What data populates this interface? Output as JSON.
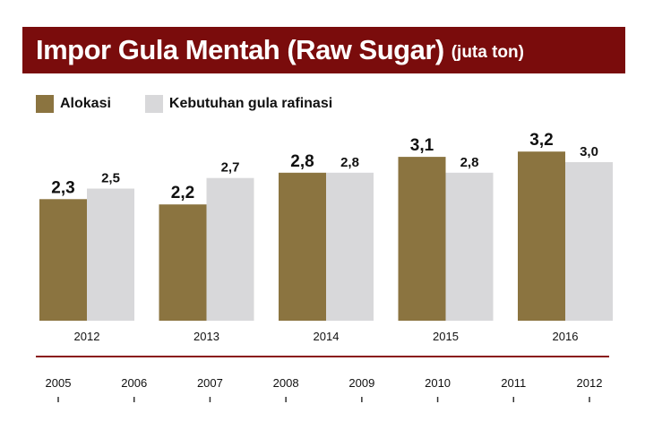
{
  "header": {
    "title": "Impor Gula Mentah (Raw Sugar)",
    "unit": "(juta ton)"
  },
  "colors": {
    "banner": "#7a0c0c",
    "alokasi": "#8b7440",
    "kebutuhan": "#d8d8da",
    "timeline": "#8a1a1a"
  },
  "legend": {
    "items": [
      {
        "label": "Alokasi"
      },
      {
        "label": "Kebutuhan gula rafinasi"
      }
    ]
  },
  "chart_data": {
    "type": "bar",
    "title": "Impor Gula Mentah (Raw Sugar)",
    "subtitle": "(juta ton)",
    "categories": [
      "2012",
      "2013",
      "2014",
      "2015",
      "2016"
    ],
    "series": [
      {
        "name": "Alokasi",
        "values": [
          2.3,
          2.2,
          2.8,
          3.1,
          3.2
        ],
        "labels": [
          "2,3",
          "2,2",
          "2,8",
          "3,1",
          "3,2"
        ]
      },
      {
        "name": "Kebutuhan gula rafinasi",
        "values": [
          2.5,
          2.7,
          2.8,
          2.8,
          3.0
        ],
        "labels": [
          "2,5",
          "2,7",
          "2,8",
          "2,8",
          "3,0"
        ]
      }
    ],
    "ylim": [
      0,
      3.5
    ],
    "grid": false,
    "legend_position": "top-left"
  },
  "timeline": {
    "years": [
      "2005",
      "2006",
      "2007",
      "2008",
      "2009",
      "2010",
      "2011",
      "2012"
    ]
  }
}
